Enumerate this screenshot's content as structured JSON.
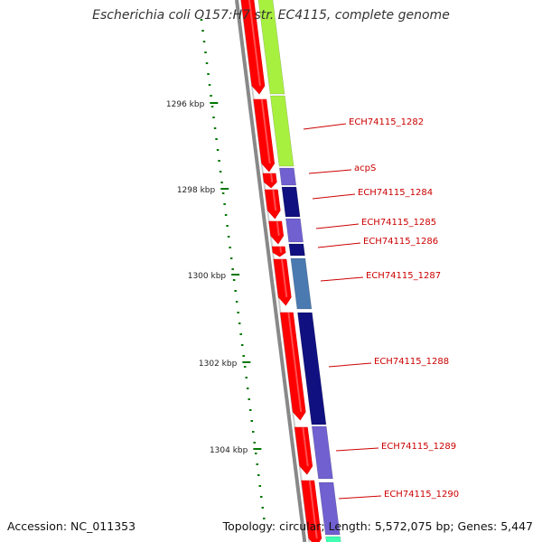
{
  "title": "Escherichia coli O157:H7 str. EC4115, complete genome",
  "footer": {
    "accession": "Accession: NC_011353",
    "topology": "Topology: circular; Length: 5,572,075 bp; Genes: 5,447"
  },
  "scale": {
    "unit": "kbp",
    "labels": [
      "1296 kbp",
      "1298 kbp",
      "1300 kbp",
      "1302 kbp",
      "1304 kbp"
    ]
  },
  "colors": {
    "backbone": "#888888",
    "forward_strand": "#ff0000",
    "cds_green": "#a8f040",
    "cds_purple": "#7060d0",
    "cds_navy": "#101080",
    "cds_steel": "#4a7ab0",
    "cds_teal": "#40ffb0",
    "scale_ticks": "#007700",
    "gene_label": "#cc0000"
  },
  "genes": [
    {
      "name": "ECH74115_1282"
    },
    {
      "name": "acpS"
    },
    {
      "name": "ECH74115_1284"
    },
    {
      "name": "ECH74115_1285"
    },
    {
      "name": "ECH74115_1286"
    },
    {
      "name": "ECH74115_1287"
    },
    {
      "name": "ECH74115_1288"
    },
    {
      "name": "ECH74115_1289"
    },
    {
      "name": "ECH74115_1290"
    }
  ]
}
